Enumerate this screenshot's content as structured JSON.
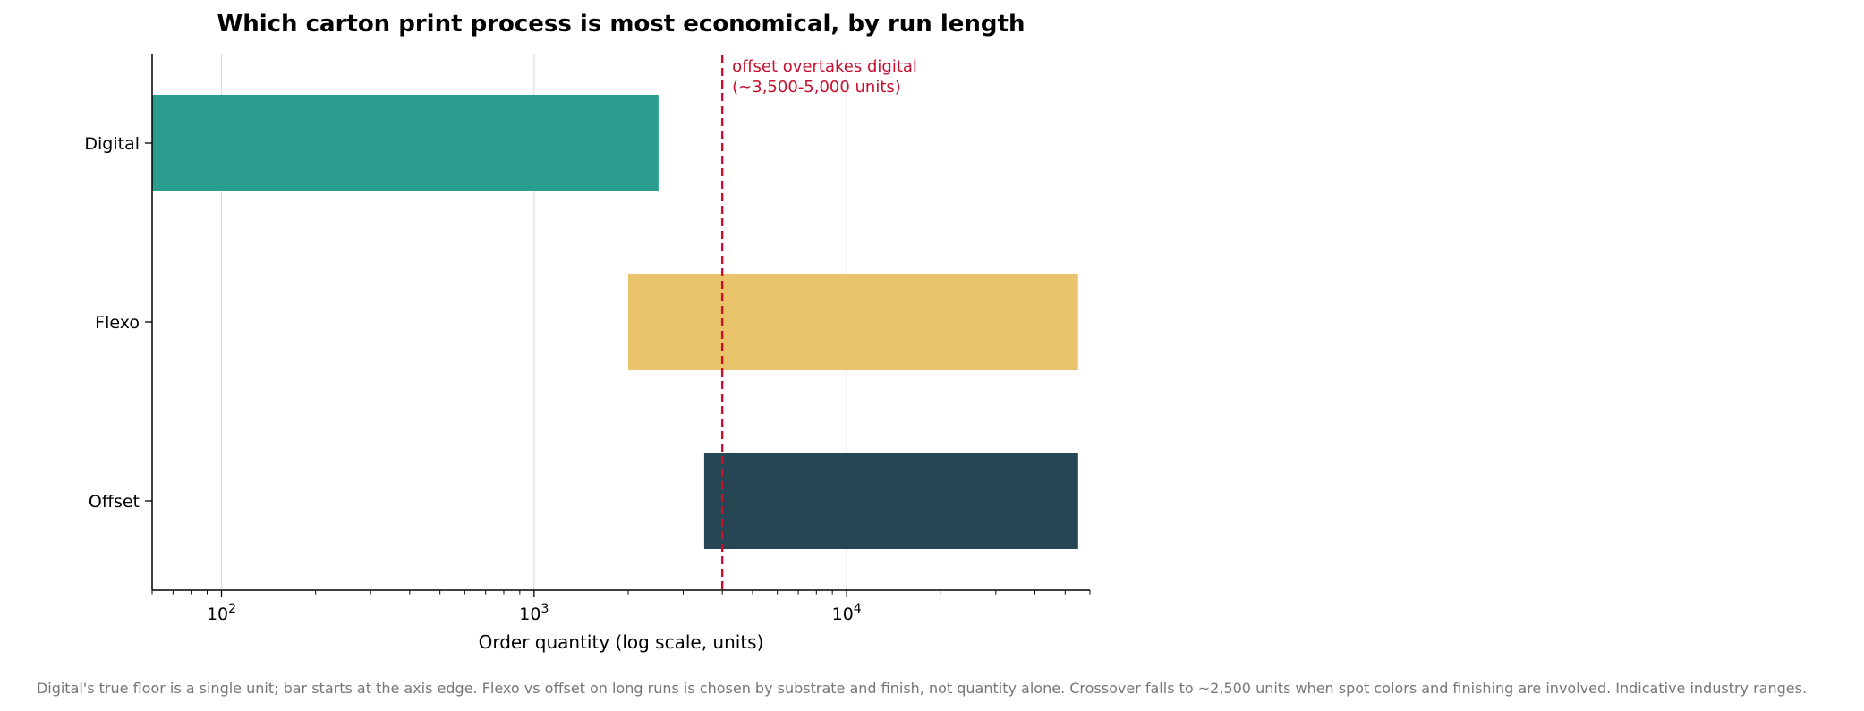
{
  "chart_data": {
    "type": "bar",
    "orientation": "horizontal",
    "title": "Which carton print process is most economical, by run length",
    "xlabel": "Order quantity (log scale, units)",
    "ylabel": "",
    "x_scale": "log",
    "xlim": [
      60,
      60000
    ],
    "x_ticks": [
      {
        "value": 100,
        "base": "10",
        "exp": "2"
      },
      {
        "value": 1000,
        "base": "10",
        "exp": "3"
      },
      {
        "value": 10000,
        "base": "10",
        "exp": "4"
      }
    ],
    "grid": "vertical-major",
    "categories": [
      "Digital",
      "Flexo",
      "Offset"
    ],
    "series": [
      {
        "category": "Digital",
        "start": 60,
        "end": 2500,
        "color": "#2a9d8f"
      },
      {
        "category": "Flexo",
        "start": 2000,
        "end": 55000,
        "color": "#e9c46a"
      },
      {
        "category": "Offset",
        "start": 3500,
        "end": 55000,
        "color": "#264653"
      }
    ],
    "reference_line": {
      "value": 4000,
      "color": "#c8102e",
      "style": "dashed",
      "label_line1": "offset overtakes digital",
      "label_line2": "(~3,500-5,000 units)"
    },
    "footnote": "Digital's true floor is a single unit; bar starts at the axis edge. Flexo vs offset on long runs is chosen by substrate and finish, not quantity alone. Crossover falls to ~2,500 units when spot colors and finishing are involved. Indicative industry ranges."
  }
}
